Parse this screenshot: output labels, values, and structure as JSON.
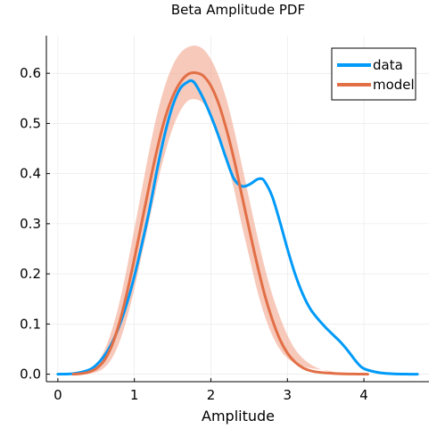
{
  "chart_data": {
    "type": "line",
    "title": "Beta Amplitude PDF",
    "xlabel": "Amplitude",
    "ylabel": "",
    "xlim": [
      -0.15,
      4.85
    ],
    "ylim": [
      -0.015,
      0.675
    ],
    "x_ticks": [
      0,
      1,
      2,
      3,
      4
    ],
    "y_ticks": [
      0.0,
      0.1,
      0.2,
      0.3,
      0.4,
      0.5,
      0.6
    ],
    "x_tick_labels": [
      "0",
      "1",
      "2",
      "3",
      "4"
    ],
    "y_tick_labels": [
      "0.0",
      "0.1",
      "0.2",
      "0.3",
      "0.4",
      "0.5",
      "0.6"
    ],
    "grid": true,
    "legend_position": "top-right",
    "series": [
      {
        "name": "data",
        "color": "#009af9",
        "x": [
          0.0,
          0.2,
          0.4,
          0.5,
          0.6,
          0.7,
          0.8,
          0.9,
          1.0,
          1.1,
          1.2,
          1.3,
          1.4,
          1.5,
          1.6,
          1.7,
          1.75,
          1.8,
          1.9,
          2.0,
          2.1,
          2.2,
          2.3,
          2.4,
          2.5,
          2.6,
          2.65,
          2.7,
          2.8,
          2.9,
          3.0,
          3.1,
          3.2,
          3.3,
          3.4,
          3.5,
          3.6,
          3.7,
          3.8,
          3.9,
          4.0,
          4.2,
          4.4,
          4.6,
          4.7
        ],
        "y": [
          0.0,
          0.001,
          0.008,
          0.018,
          0.035,
          0.06,
          0.095,
          0.14,
          0.195,
          0.26,
          0.33,
          0.41,
          0.48,
          0.535,
          0.57,
          0.583,
          0.585,
          0.578,
          0.55,
          0.515,
          0.475,
          0.43,
          0.39,
          0.375,
          0.378,
          0.388,
          0.39,
          0.385,
          0.355,
          0.305,
          0.25,
          0.2,
          0.16,
          0.13,
          0.11,
          0.093,
          0.078,
          0.063,
          0.045,
          0.025,
          0.011,
          0.003,
          0.0005,
          0.0,
          0.0
        ]
      },
      {
        "name": "model",
        "color": "#e26f46",
        "x": [
          0.2,
          0.3,
          0.4,
          0.5,
          0.6,
          0.7,
          0.8,
          0.9,
          1.0,
          1.1,
          1.2,
          1.3,
          1.4,
          1.5,
          1.6,
          1.7,
          1.8,
          1.9,
          2.0,
          2.1,
          2.2,
          2.3,
          2.4,
          2.5,
          2.6,
          2.7,
          2.8,
          2.9,
          3.0,
          3.1,
          3.2,
          3.3,
          3.4,
          3.5,
          3.6,
          3.7,
          3.8,
          3.9,
          4.0,
          4.05
        ],
        "y": [
          0.0,
          0.001,
          0.004,
          0.011,
          0.026,
          0.055,
          0.1,
          0.16,
          0.23,
          0.305,
          0.38,
          0.45,
          0.51,
          0.553,
          0.582,
          0.598,
          0.601,
          0.595,
          0.575,
          0.54,
          0.49,
          0.43,
          0.36,
          0.29,
          0.222,
          0.16,
          0.11,
          0.07,
          0.042,
          0.024,
          0.013,
          0.007,
          0.004,
          0.0025,
          0.0015,
          0.0008,
          0.0004,
          0.0002,
          0.0001,
          0.0
        ],
        "lower": [
          0.0,
          0.0,
          0.0,
          0.0,
          0.0,
          0.0,
          0.0,
          0.0,
          0.0,
          0.0,
          0.0,
          0.0,
          0.0,
          0.0,
          0.0,
          0.0,
          0.0,
          0.0,
          0.0,
          0.0,
          0.0,
          0.0,
          0.0,
          0.0,
          0.0,
          0.0,
          0.0,
          0.0,
          0.0,
          0.0,
          0.0,
          0.0,
          0.0,
          0.0,
          0.0,
          0.0,
          0.0,
          0.0,
          0.0,
          0.0
        ],
        "upper": [
          0.0,
          0.0,
          0.0,
          0.0,
          0.0,
          0.0,
          0.0,
          0.0,
          0.0,
          0.0,
          0.0,
          0.0,
          0.0,
          0.0,
          0.0,
          0.0,
          0.0,
          0.0,
          0.0,
          0.0,
          0.0,
          0.0,
          0.0,
          0.0,
          0.0,
          0.0,
          0.0,
          0.0,
          0.0,
          0.0,
          0.0,
          0.0,
          0.0,
          0.0,
          0.0,
          0.0,
          0.0,
          0.0,
          0.0,
          0.0
        ],
        "band_x": [
          0.3,
          0.4,
          0.5,
          0.6,
          0.7,
          0.8,
          0.9,
          1.0,
          1.1,
          1.2,
          1.3,
          1.4,
          1.5,
          1.6,
          1.7,
          1.8,
          1.9,
          2.0,
          2.1,
          2.2,
          2.3,
          2.4,
          2.5,
          2.6,
          2.7,
          2.8,
          2.9,
          3.0,
          3.1,
          3.2,
          3.3,
          3.4,
          3.5,
          3.6
        ],
        "band_lower": [
          0.0,
          0.001,
          0.004,
          0.012,
          0.03,
          0.062,
          0.11,
          0.17,
          0.24,
          0.31,
          0.38,
          0.44,
          0.49,
          0.525,
          0.545,
          0.548,
          0.54,
          0.515,
          0.478,
          0.43,
          0.37,
          0.3,
          0.235,
          0.17,
          0.118,
          0.078,
          0.05,
          0.032,
          0.022,
          0.016,
          0.012,
          0.01,
          0.008,
          0.005
        ],
        "band_upper": [
          0.002,
          0.008,
          0.02,
          0.045,
          0.085,
          0.14,
          0.21,
          0.29,
          0.37,
          0.45,
          0.52,
          0.575,
          0.615,
          0.64,
          0.652,
          0.655,
          0.648,
          0.628,
          0.595,
          0.55,
          0.49,
          0.42,
          0.35,
          0.28,
          0.215,
          0.16,
          0.115,
          0.078,
          0.05,
          0.032,
          0.02,
          0.012,
          0.007,
          0.004
        ],
        "band_color": "#f2a58c"
      }
    ]
  }
}
